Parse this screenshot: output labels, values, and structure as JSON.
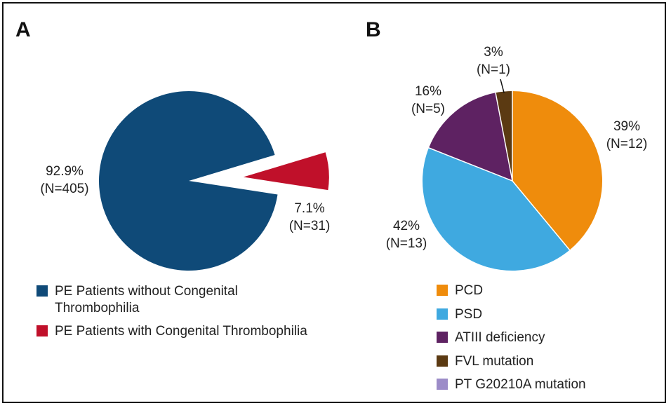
{
  "chart_data": [
    {
      "type": "pie",
      "panel": "A",
      "title": "",
      "slices": [
        {
          "name": "PE Patients without Congenital Thrombophilia",
          "value": 92.9,
          "label_pct": "92.9%",
          "label_n": "(N=405)",
          "color": "#0f4a78",
          "exploded": false
        },
        {
          "name": "PE Patients with Congenital Thrombophilia",
          "value": 7.1,
          "label_pct": "7.1%",
          "label_n": "(N=31)",
          "color": "#c0102a",
          "exploded": true
        }
      ],
      "legend": [
        {
          "lines": [
            "PE Patients without Congenital",
            "Thrombophilia"
          ],
          "color": "#0f4a78"
        },
        {
          "lines": [
            "PE Patients with Congenital Thrombophilia"
          ],
          "color": "#c0102a"
        }
      ],
      "legend_position": "bottom"
    },
    {
      "type": "pie",
      "panel": "B",
      "title": "",
      "slices": [
        {
          "name": "PCD",
          "value": 39,
          "label_pct": "39%",
          "label_n": "(N=12)",
          "color": "#ef8c0c"
        },
        {
          "name": "PSD",
          "value": 42,
          "label_pct": "42%",
          "label_n": "(N=13)",
          "color": "#3fa9e0"
        },
        {
          "name": "ATIII deficiency",
          "value": 16,
          "label_pct": "16%",
          "label_n": "(N=5)",
          "color": "#5e2262"
        },
        {
          "name": "FVL mutation",
          "value": 3,
          "label_pct": "3%",
          "label_n": "(N=1)",
          "color": "#5b3a12"
        },
        {
          "name": "PT G20210A mutation",
          "value": 0,
          "label_pct": "",
          "label_n": "",
          "color": "#9c8cc8"
        }
      ],
      "legend": [
        {
          "lines": [
            "PCD"
          ],
          "color": "#ef8c0c"
        },
        {
          "lines": [
            "PSD"
          ],
          "color": "#3fa9e0"
        },
        {
          "lines": [
            "ATIII deficiency"
          ],
          "color": "#5e2262"
        },
        {
          "lines": [
            "FVL mutation"
          ],
          "color": "#5b3a12"
        },
        {
          "lines": [
            "PT G20210A mutation"
          ],
          "color": "#9c8cc8"
        }
      ],
      "legend_position": "bottom"
    }
  ]
}
